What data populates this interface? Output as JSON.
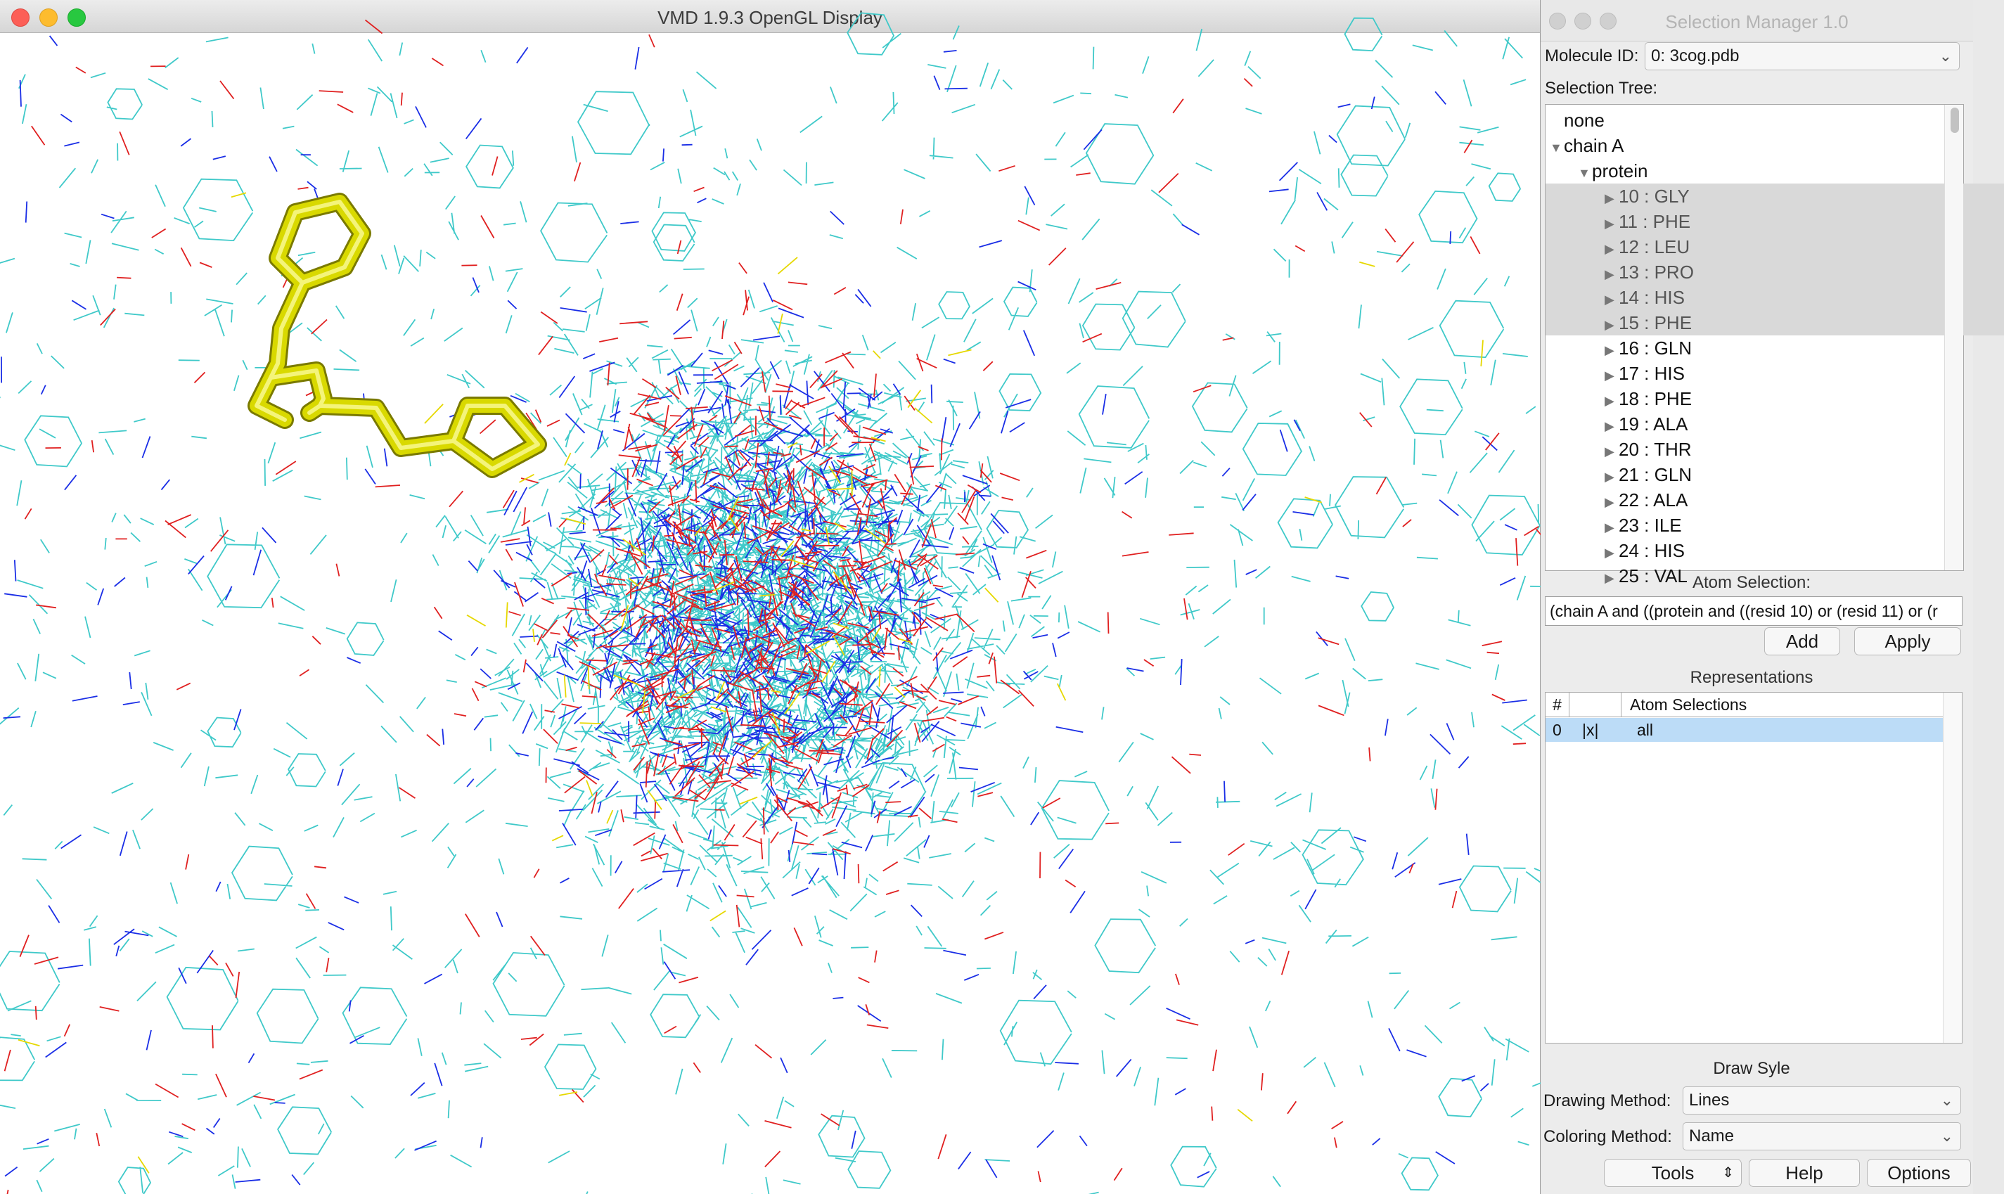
{
  "gl_window": {
    "title": "VMD 1.9.3 OpenGL Display"
  },
  "colors": {
    "bond_carbon": "#3fc9c9",
    "bond_nitrogen": "#1a2ee6",
    "bond_oxygen": "#e02020",
    "bond_sulfur": "#e6d800",
    "licorice": "#d9d900",
    "selection_highlight": "#d9d9d9",
    "rep_row_highlight": "#bcdcf7"
  },
  "selection_manager": {
    "title": "Selection Manager 1.0",
    "molecule_id_label": "Molecule ID:",
    "molecule_id_value": "0: 3cog.pdb",
    "selection_tree_label": "Selection Tree:",
    "tree": {
      "root_none": "none",
      "chain": "chain A",
      "group": "protein",
      "residues": [
        {
          "label": "10 : GLY",
          "selected": true
        },
        {
          "label": "11 : PHE",
          "selected": true
        },
        {
          "label": "12 : LEU",
          "selected": true
        },
        {
          "label": "13 : PRO",
          "selected": true
        },
        {
          "label": "14 : HIS",
          "selected": true
        },
        {
          "label": "15 : PHE",
          "selected": true
        },
        {
          "label": "16 : GLN",
          "selected": false
        },
        {
          "label": "17 : HIS",
          "selected": false
        },
        {
          "label": "18 : PHE",
          "selected": false
        },
        {
          "label": "19 : ALA",
          "selected": false
        },
        {
          "label": "20 : THR",
          "selected": false
        },
        {
          "label": "21 : GLN",
          "selected": false
        },
        {
          "label": "22 : ALA",
          "selected": false
        },
        {
          "label": "23 : ILE",
          "selected": false
        },
        {
          "label": "24 : HIS",
          "selected": false
        },
        {
          "label": "25 : VAL",
          "selected": false
        }
      ]
    },
    "atom_selection_label": "Atom Selection:",
    "atom_selection_value": "(chain A and ((protein and ((resid 10) or (resid 11) or (r",
    "add_button": "Add",
    "apply_button": "Apply",
    "representations_label": "Representations",
    "reps_columns": {
      "num": "#",
      "vis": "",
      "sel": "Atom Selections"
    },
    "reps_rows": [
      {
        "num": "0",
        "vis": "|x|",
        "sel": "all"
      }
    ],
    "draw_style_label": "Draw Syle",
    "drawing_method_label": "Drawing Method:",
    "drawing_method_value": "Lines",
    "coloring_method_label": "Coloring Method:",
    "coloring_method_value": "Name",
    "tools_button": "Tools",
    "help_button": "Help",
    "options_button": "Options"
  }
}
